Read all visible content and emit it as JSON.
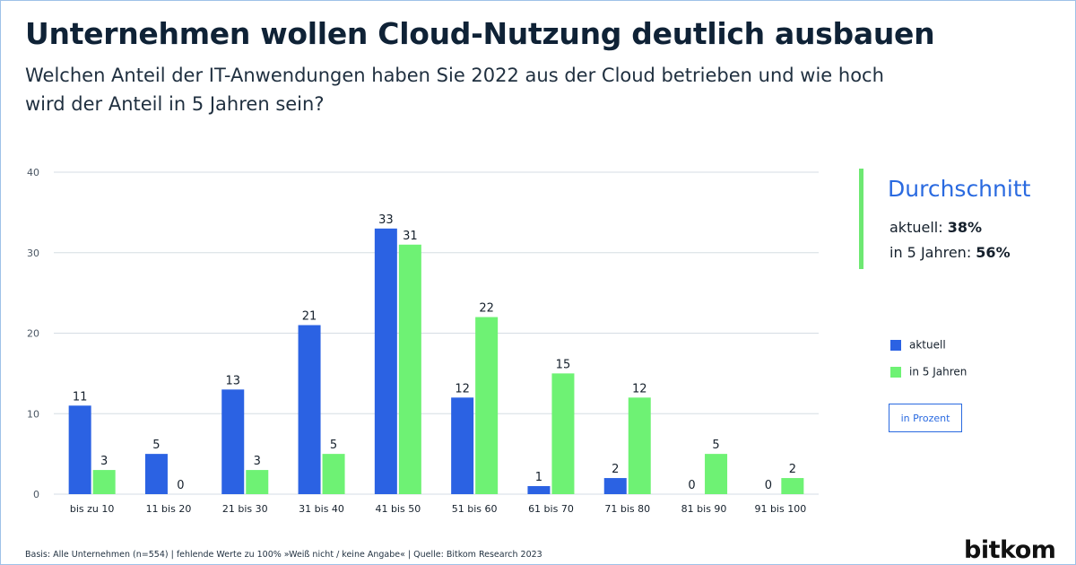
{
  "header": {
    "title": "Unternehmen wollen Cloud-Nutzung deutlich ausbauen",
    "subtitle": "Welchen Anteil der IT-Anwendungen haben Sie 2022 aus der Cloud betrieben und wie hoch wird der Anteil in 5 Jahren sein?"
  },
  "average": {
    "title": "Durchschnitt",
    "current_label": "aktuell:",
    "current_value": "38%",
    "future_label": "in 5 Jahren:",
    "future_value": "56%"
  },
  "legend": {
    "current": "aktuell",
    "future": "in 5 Jahren",
    "unit": "in Prozent"
  },
  "colors": {
    "current": "#2b62e3",
    "future": "#6ef274",
    "grid": "#d6dde4",
    "axis_text": "#4a5663",
    "label_text": "#15202c"
  },
  "footer": {
    "note": "Basis: Alle Unternehmen (n=554) | fehlende Werte zu 100% »Weiß nicht / keine Angabe« | Quelle: Bitkom Research 2023",
    "brand": "bitkom"
  },
  "chart_data": {
    "type": "bar",
    "title": "Unternehmen wollen Cloud-Nutzung deutlich ausbauen",
    "categories": [
      "bis zu 10",
      "11 bis 20",
      "21 bis 30",
      "31 bis 40",
      "41 bis 50",
      "51 bis 60",
      "61 bis 70",
      "71 bis 80",
      "81 bis 90",
      "91 bis 100"
    ],
    "series": [
      {
        "name": "aktuell",
        "values": [
          11,
          5,
          13,
          21,
          33,
          12,
          1,
          2,
          0,
          0
        ]
      },
      {
        "name": "in 5 Jahren",
        "values": [
          3,
          0,
          3,
          5,
          31,
          22,
          15,
          12,
          5,
          2
        ]
      }
    ],
    "ylim": [
      0,
      40
    ],
    "yticks": [
      0,
      10,
      20,
      30,
      40
    ],
    "grid": true,
    "xlabel": "",
    "ylabel": "in Prozent",
    "legend_position": "right"
  }
}
